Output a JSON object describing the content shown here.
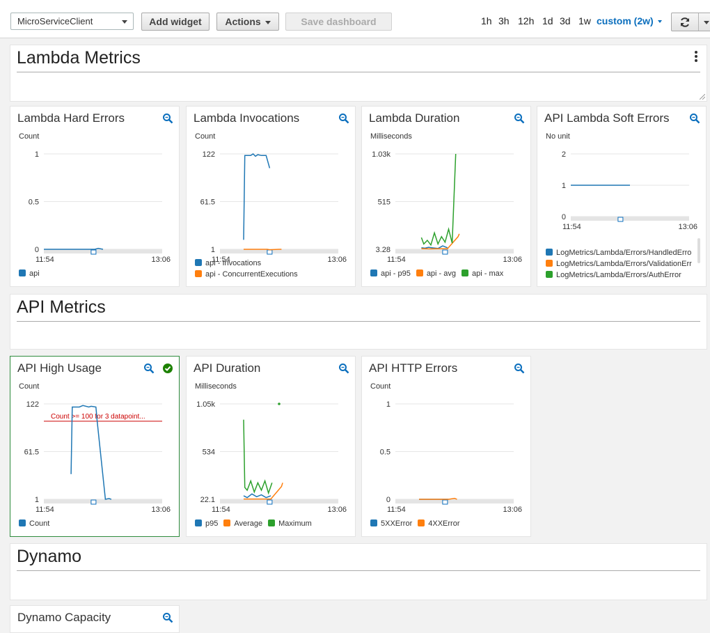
{
  "topbar": {
    "dashboard_select": "MicroServiceClient",
    "add_widget": "Add widget",
    "actions": "Actions",
    "save_dashboard": "Save dashboard",
    "ranges": [
      "1h",
      "3h",
      "12h",
      "1d",
      "3d",
      "1w"
    ],
    "custom_range": "custom (2w)"
  },
  "sections": [
    {
      "title": "Lambda Metrics"
    },
    {
      "title": "API Metrics"
    },
    {
      "title": "Dynamo"
    }
  ],
  "colors": {
    "blue": "#1f77b4",
    "orange": "#ff7f0e",
    "green": "#2ca02c",
    "accent": "#0a6ebd",
    "threshold": "#cc0000"
  },
  "widgets": [
    {
      "title": "Lambda Hard Errors",
      "unit": "Count",
      "chart_data": {
        "type": "line",
        "title": "Lambda Hard Errors",
        "ylabel": "Count",
        "y_ticks": [
          "1",
          "0.5",
          "0"
        ],
        "x_ticks": [
          "11:54",
          "13:06"
        ],
        "ylim": [
          0,
          1
        ],
        "series": [
          {
            "name": "api",
            "color": "#1f77b4",
            "x": [
              0,
              0.18,
              0.35,
              0.37,
              0.4,
              0.43,
              0.46,
              0.5
            ],
            "y": [
              0,
              0,
              0,
              0,
              0,
              0,
              0.01,
              0
            ]
          }
        ]
      },
      "legend": [
        "api"
      ]
    },
    {
      "title": "Lambda Invocations",
      "unit": "Count",
      "chart_data": {
        "type": "line",
        "title": "Lambda Invocations",
        "ylabel": "Count",
        "y_ticks": [
          "122",
          "61.5",
          "1"
        ],
        "x_ticks": [
          "11:54",
          "13:06"
        ],
        "ylim": [
          1,
          122
        ],
        "series": [
          {
            "name": "api - Invocations",
            "color": "#1f77b4",
            "x": [
              0.2,
              0.21,
              0.26,
              0.28,
              0.3,
              0.32,
              0.35,
              0.39,
              0.42
            ],
            "y": [
              13,
              120,
              120,
              122,
              119,
              121,
              120,
              120,
              104
            ]
          },
          {
            "name": "api - ConcurrentExecutions",
            "color": "#ff7f0e",
            "x": [
              0.2,
              0.3,
              0.4,
              0.42,
              0.5,
              0.52
            ],
            "y": [
              1,
              1,
              1,
              0.5,
              1,
              1
            ]
          }
        ]
      },
      "legend": [
        "api - Invocations",
        "api - ConcurrentExecutions"
      ]
    },
    {
      "title": "Lambda Duration",
      "unit": "Milliseconds",
      "chart_data": {
        "type": "line",
        "title": "Lambda Duration",
        "ylabel": "Milliseconds",
        "y_ticks": [
          "1.03k",
          "515",
          "3.28"
        ],
        "x_ticks": [
          "11:54",
          "13:06"
        ],
        "ylim": [
          3.28,
          1030
        ],
        "series": [
          {
            "name": "api - p95",
            "color": "#1f77b4",
            "x": [
              0.22,
              0.25,
              0.28,
              0.32,
              0.36,
              0.4,
              0.44
            ],
            "y": [
              20,
              15,
              25,
              18,
              12,
              40,
              20
            ]
          },
          {
            "name": "api - avg",
            "color": "#ff7f0e",
            "x": [
              0.22,
              0.3,
              0.38,
              0.44,
              0.53,
              0.54
            ],
            "y": [
              10,
              8,
              10,
              9,
              140,
              170
            ]
          },
          {
            "name": "api - max",
            "color": "#2ca02c",
            "x": [
              0.22,
              0.24,
              0.27,
              0.3,
              0.33,
              0.36,
              0.39,
              0.42,
              0.45,
              0.48,
              0.51
            ],
            "y": [
              130,
              60,
              100,
              50,
              180,
              60,
              140,
              80,
              220,
              70,
              1030
            ]
          }
        ]
      },
      "legend": [
        "api - p95",
        "api - avg",
        "api - max"
      ]
    },
    {
      "title": "API Lambda Soft Errors",
      "unit": "No unit",
      "chart_data": {
        "type": "line",
        "title": "API Lambda Soft Errors",
        "ylabel": "No unit",
        "y_ticks": [
          "2",
          "1",
          "0"
        ],
        "x_ticks": [
          "11:54",
          "13:06"
        ],
        "ylim": [
          0,
          2
        ],
        "series": [
          {
            "name": "LogMetrics/Lambda/Errors/HandledErro",
            "color": "#1f77b4",
            "x": [
              0,
              0.5
            ],
            "y": [
              1,
              1
            ]
          },
          {
            "name": "LogMetrics/Lambda/Errors/ValidationErr",
            "color": "#ff7f0e",
            "x": [],
            "y": []
          },
          {
            "name": "LogMetrics/Lambda/Errors/AuthError",
            "color": "#2ca02c",
            "x": [],
            "y": []
          }
        ]
      },
      "legend": [
        "LogMetrics/Lambda/Errors/HandledErro",
        "LogMetrics/Lambda/Errors/ValidationErr",
        "LogMetrics/Lambda/Errors/AuthError"
      ]
    },
    {
      "title": "API High Usage",
      "unit": "Count",
      "threshold_label": "Count >= 100 for 3 datapoint...",
      "chart_data": {
        "type": "line",
        "title": "API High Usage",
        "ylabel": "Count",
        "y_ticks": [
          "122",
          "61.5",
          "1"
        ],
        "x_ticks": [
          "11:54",
          "13:06"
        ],
        "ylim": [
          1,
          122
        ],
        "threshold": 100,
        "series": [
          {
            "name": "Count",
            "color": "#1f77b4",
            "x": [
              0.23,
              0.24,
              0.3,
              0.33,
              0.38,
              0.4,
              0.44,
              0.45,
              0.52,
              0.55,
              0.57
            ],
            "y": [
              33,
              118,
              118,
              120,
              118,
              119,
              118,
              101,
              1,
              2,
              1
            ]
          }
        ]
      },
      "legend": [
        "Count"
      ]
    },
    {
      "title": "API Duration",
      "unit": "Milliseconds",
      "chart_data": {
        "type": "line",
        "title": "API Duration",
        "ylabel": "Milliseconds",
        "y_ticks": [
          "1.05k",
          "534",
          "22.1"
        ],
        "x_ticks": [
          "11:54",
          "13:06"
        ],
        "ylim": [
          22.1,
          1050
        ],
        "series": [
          {
            "name": "p95",
            "color": "#1f77b4",
            "x": [
              0.2,
              0.23,
              0.27,
              0.31,
              0.35,
              0.39,
              0.43
            ],
            "y": [
              60,
              40,
              80,
              50,
              70,
              40,
              60
            ]
          },
          {
            "name": "Average",
            "color": "#ff7f0e",
            "x": [
              0.2,
              0.3,
              0.4,
              0.43,
              0.52,
              0.53
            ],
            "y": [
              25,
              25,
              25,
              25,
              160,
              200
            ]
          },
          {
            "name": "Maximum",
            "color": "#2ca02c",
            "x": [
              0.2,
              0.21,
              0.23,
              0.26,
              0.29,
              0.32,
              0.35,
              0.38,
              0.41,
              0.44,
              0.5
            ],
            "y": [
              880,
              150,
              120,
              220,
              100,
              200,
              120,
              220,
              90,
              200,
              1050
            ]
          }
        ]
      },
      "legend": [
        "p95",
        "Average",
        "Maximum"
      ]
    },
    {
      "title": "API HTTP Errors",
      "unit": "Count",
      "chart_data": {
        "type": "line",
        "title": "API HTTP Errors",
        "ylabel": "Count",
        "y_ticks": [
          "1",
          "0.5",
          "0"
        ],
        "x_ticks": [
          "11:54",
          "13:06"
        ],
        "ylim": [
          0,
          1
        ],
        "series": [
          {
            "name": "5XXError",
            "color": "#1f77b4",
            "x": [
              0.2,
              0.45
            ],
            "y": [
              0,
              0
            ]
          },
          {
            "name": "4XXError",
            "color": "#ff7f0e",
            "x": [
              0.2,
              0.25,
              0.3,
              0.35,
              0.4,
              0.45,
              0.5,
              0.52
            ],
            "y": [
              0,
              0,
              0,
              0,
              0,
              0,
              0.01,
              0
            ]
          }
        ]
      },
      "legend": [
        "5XXError",
        "4XXError"
      ]
    },
    {
      "title": "Dynamo Capacity",
      "unit": "",
      "chart_data": {
        "type": "line",
        "title": "Dynamo Capacity",
        "ylabel": "",
        "y_ticks": [],
        "x_ticks": [],
        "series": []
      },
      "legend": []
    }
  ]
}
